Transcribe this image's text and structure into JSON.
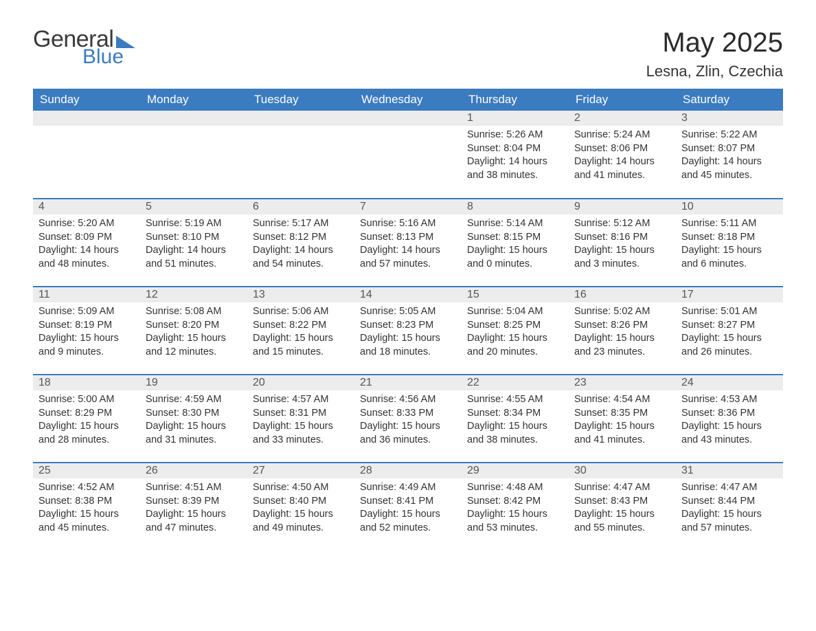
{
  "logo": {
    "word1": "General",
    "word2": "Blue"
  },
  "title": "May 2025",
  "location": "Lesna, Zlin, Czechia",
  "colors": {
    "header_bg": "#3b7bbf",
    "header_text": "#ffffff",
    "daynum_bg": "#ececec",
    "daynum_text": "#555555",
    "body_text": "#333333",
    "row_border": "#3b7bbf",
    "page_bg": "#ffffff"
  },
  "weekdays": [
    "Sunday",
    "Monday",
    "Tuesday",
    "Wednesday",
    "Thursday",
    "Friday",
    "Saturday"
  ],
  "labels": {
    "sunrise": "Sunrise: ",
    "sunset": "Sunset: ",
    "daylight": "Daylight: "
  },
  "first_weekday_index": 4,
  "days": [
    {
      "n": 1,
      "sunrise": "5:26 AM",
      "sunset": "8:04 PM",
      "daylight": "14 hours and 38 minutes."
    },
    {
      "n": 2,
      "sunrise": "5:24 AM",
      "sunset": "8:06 PM",
      "daylight": "14 hours and 41 minutes."
    },
    {
      "n": 3,
      "sunrise": "5:22 AM",
      "sunset": "8:07 PM",
      "daylight": "14 hours and 45 minutes."
    },
    {
      "n": 4,
      "sunrise": "5:20 AM",
      "sunset": "8:09 PM",
      "daylight": "14 hours and 48 minutes."
    },
    {
      "n": 5,
      "sunrise": "5:19 AM",
      "sunset": "8:10 PM",
      "daylight": "14 hours and 51 minutes."
    },
    {
      "n": 6,
      "sunrise": "5:17 AM",
      "sunset": "8:12 PM",
      "daylight": "14 hours and 54 minutes."
    },
    {
      "n": 7,
      "sunrise": "5:16 AM",
      "sunset": "8:13 PM",
      "daylight": "14 hours and 57 minutes."
    },
    {
      "n": 8,
      "sunrise": "5:14 AM",
      "sunset": "8:15 PM",
      "daylight": "15 hours and 0 minutes."
    },
    {
      "n": 9,
      "sunrise": "5:12 AM",
      "sunset": "8:16 PM",
      "daylight": "15 hours and 3 minutes."
    },
    {
      "n": 10,
      "sunrise": "5:11 AM",
      "sunset": "8:18 PM",
      "daylight": "15 hours and 6 minutes."
    },
    {
      "n": 11,
      "sunrise": "5:09 AM",
      "sunset": "8:19 PM",
      "daylight": "15 hours and 9 minutes."
    },
    {
      "n": 12,
      "sunrise": "5:08 AM",
      "sunset": "8:20 PM",
      "daylight": "15 hours and 12 minutes."
    },
    {
      "n": 13,
      "sunrise": "5:06 AM",
      "sunset": "8:22 PM",
      "daylight": "15 hours and 15 minutes."
    },
    {
      "n": 14,
      "sunrise": "5:05 AM",
      "sunset": "8:23 PM",
      "daylight": "15 hours and 18 minutes."
    },
    {
      "n": 15,
      "sunrise": "5:04 AM",
      "sunset": "8:25 PM",
      "daylight": "15 hours and 20 minutes."
    },
    {
      "n": 16,
      "sunrise": "5:02 AM",
      "sunset": "8:26 PM",
      "daylight": "15 hours and 23 minutes."
    },
    {
      "n": 17,
      "sunrise": "5:01 AM",
      "sunset": "8:27 PM",
      "daylight": "15 hours and 26 minutes."
    },
    {
      "n": 18,
      "sunrise": "5:00 AM",
      "sunset": "8:29 PM",
      "daylight": "15 hours and 28 minutes."
    },
    {
      "n": 19,
      "sunrise": "4:59 AM",
      "sunset": "8:30 PM",
      "daylight": "15 hours and 31 minutes."
    },
    {
      "n": 20,
      "sunrise": "4:57 AM",
      "sunset": "8:31 PM",
      "daylight": "15 hours and 33 minutes."
    },
    {
      "n": 21,
      "sunrise": "4:56 AM",
      "sunset": "8:33 PM",
      "daylight": "15 hours and 36 minutes."
    },
    {
      "n": 22,
      "sunrise": "4:55 AM",
      "sunset": "8:34 PM",
      "daylight": "15 hours and 38 minutes."
    },
    {
      "n": 23,
      "sunrise": "4:54 AM",
      "sunset": "8:35 PM",
      "daylight": "15 hours and 41 minutes."
    },
    {
      "n": 24,
      "sunrise": "4:53 AM",
      "sunset": "8:36 PM",
      "daylight": "15 hours and 43 minutes."
    },
    {
      "n": 25,
      "sunrise": "4:52 AM",
      "sunset": "8:38 PM",
      "daylight": "15 hours and 45 minutes."
    },
    {
      "n": 26,
      "sunrise": "4:51 AM",
      "sunset": "8:39 PM",
      "daylight": "15 hours and 47 minutes."
    },
    {
      "n": 27,
      "sunrise": "4:50 AM",
      "sunset": "8:40 PM",
      "daylight": "15 hours and 49 minutes."
    },
    {
      "n": 28,
      "sunrise": "4:49 AM",
      "sunset": "8:41 PM",
      "daylight": "15 hours and 52 minutes."
    },
    {
      "n": 29,
      "sunrise": "4:48 AM",
      "sunset": "8:42 PM",
      "daylight": "15 hours and 53 minutes."
    },
    {
      "n": 30,
      "sunrise": "4:47 AM",
      "sunset": "8:43 PM",
      "daylight": "15 hours and 55 minutes."
    },
    {
      "n": 31,
      "sunrise": "4:47 AM",
      "sunset": "8:44 PM",
      "daylight": "15 hours and 57 minutes."
    }
  ]
}
